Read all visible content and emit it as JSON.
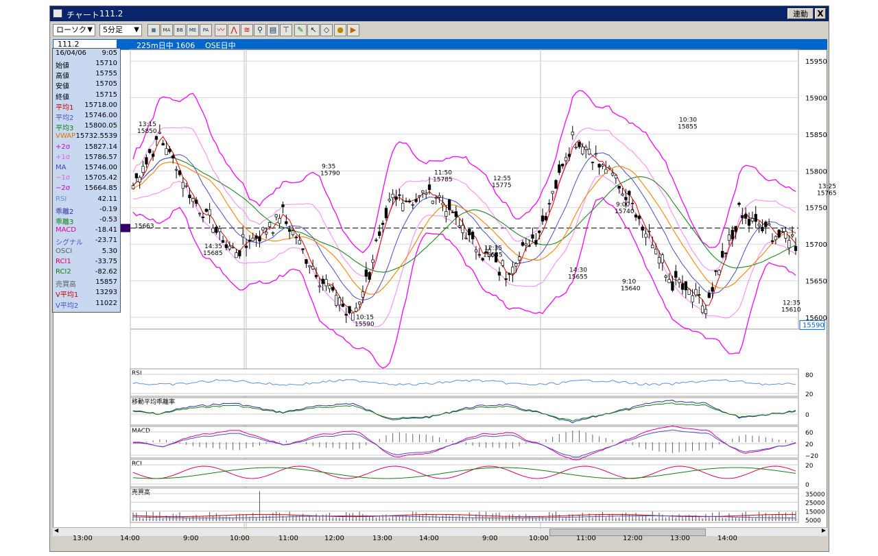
{
  "window": {
    "title": "チャート",
    "code": "111.2",
    "link_button": "連動",
    "close_glyph": "X"
  },
  "toolbar": {
    "chart_type": "ローソク",
    "interval": "5分足",
    "buttons": [
      "MA",
      "BB",
      "ME",
      "PA",
      "line",
      "peak",
      "wave",
      "zoom",
      "table",
      "range",
      "pen",
      "cursor",
      "erase",
      "coin",
      "nav"
    ]
  },
  "infobar": {
    "symbol": "111.2",
    "contract": "225m日中 1606",
    "session": "OSE日中"
  },
  "panel": {
    "date": "16/04/06",
    "time": "9:05",
    "rows": [
      {
        "k": "始値",
        "v": "15710",
        "c": "#000000"
      },
      {
        "k": "高値",
        "v": "15755",
        "c": "#000000"
      },
      {
        "k": "安値",
        "v": "15705",
        "c": "#000000"
      },
      {
        "k": "終値",
        "v": "15715",
        "c": "#000000"
      },
      {
        "k": "平均1",
        "v": "15718.00",
        "c": "#cc0000"
      },
      {
        "k": "平均2",
        "v": "15746.00",
        "c": "#5050c0"
      },
      {
        "k": "平均3",
        "v": "15800.05",
        "c": "#108010"
      },
      {
        "k": "VWAP",
        "v": "15732.5539",
        "c": "#e07000"
      },
      {
        "k": "+2σ",
        "v": "15827.14",
        "c": "#d000d0"
      },
      {
        "k": "+1σ",
        "v": "15786.57",
        "c": "#e060e0"
      },
      {
        "k": "MA",
        "v": "15746.00",
        "c": "#4040c0"
      },
      {
        "k": "−1σ",
        "v": "15705.42",
        "c": "#e060e0"
      },
      {
        "k": "−2σ",
        "v": "15664.85",
        "c": "#d000d0"
      },
      {
        "k": "RSI",
        "v": "42.11",
        "c": "#6090e0"
      },
      {
        "k": "乖離2",
        "v": "-0.19",
        "c": "#3030a0"
      },
      {
        "k": "乖離3",
        "v": "-0.53",
        "c": "#108010"
      },
      {
        "k": "MACD",
        "v": "-18.41",
        "c": "#e000a0"
      },
      {
        "k": "シグナル",
        "v": "-23.71",
        "c": "#5050c0"
      },
      {
        "k": "OSCI",
        "v": "5.30",
        "c": "#606060"
      },
      {
        "k": "RCI1",
        "v": "-33.75",
        "c": "#e00060"
      },
      {
        "k": "RCI2",
        "v": "-82.62",
        "c": "#108010"
      },
      {
        "k": "売買高",
        "v": "15857",
        "c": "#606060"
      },
      {
        "k": "V平均1",
        "v": "13293",
        "c": "#cc0000"
      },
      {
        "k": "V平均2",
        "v": "11022",
        "c": "#5050c0"
      }
    ]
  },
  "price_axis": {
    "ticks": [
      "15950",
      "15900",
      "15850",
      "15800",
      "15750",
      "15700",
      "15650",
      "15600"
    ],
    "current": "15590",
    "hline": "15663"
  },
  "price_annotations": [
    {
      "t": "13:15",
      "p": "15850"
    },
    {
      "t": "14:35",
      "p": "15685"
    },
    {
      "t": "9:35",
      "p": "15790"
    },
    {
      "t": "10:15",
      "p": "15590"
    },
    {
      "t": "11:50",
      "p": "15785"
    },
    {
      "t": "12:55",
      "p": "15775"
    },
    {
      "t": "12:35",
      "p": "15685"
    },
    {
      "t": "14:30",
      "p": "15655"
    },
    {
      "t": "9:00",
      "p": "15740"
    },
    {
      "t": "9:10",
      "p": "15640"
    },
    {
      "t": "10:30",
      "p": "15855"
    },
    {
      "t": "12:35",
      "p": "15610"
    },
    {
      "t": "13:25",
      "p": "15765"
    }
  ],
  "subpanels": [
    {
      "name": "RSI",
      "ticks": [
        "80",
        "20"
      ]
    },
    {
      "name": "移動平均乖離率",
      "ticks": [
        "0"
      ]
    },
    {
      "name": "MACD",
      "ticks": [
        "60",
        "20",
        "−20"
      ]
    },
    {
      "name": "RCI",
      "ticks": [
        "20",
        "0"
      ]
    },
    {
      "name": "売買高",
      "ticks": [
        "35000",
        "25000",
        "15000",
        "5000"
      ]
    }
  ],
  "x_axis": [
    "13:00",
    "14:00",
    "9:00",
    "10:00",
    "11:00",
    "12:00",
    "13:00",
    "14:00",
    "9:00",
    "10:00",
    "11:00",
    "12:00",
    "13:00",
    "14:00"
  ],
  "colors": {
    "title": "#0a246a",
    "infobar": "#0066cc",
    "panel": "#c8d8f0",
    "bb2": "#ff00ff",
    "bb1": "#ff80ff",
    "ma1": "#e00000",
    "ma2": "#4a4ad0",
    "ma3": "#1a8a1a",
    "vwap": "#ff8000"
  }
}
